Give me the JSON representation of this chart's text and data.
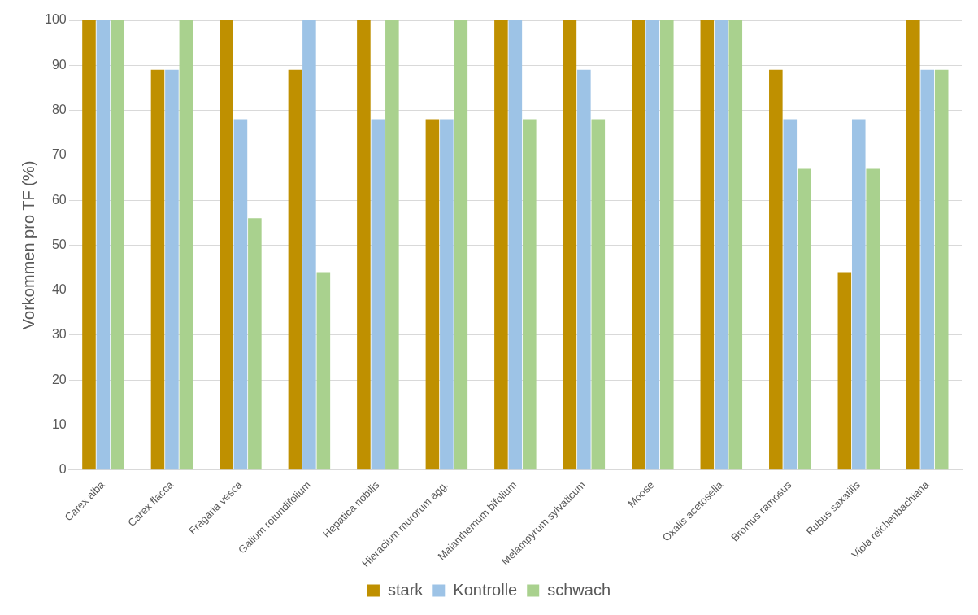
{
  "chart_data": {
    "type": "bar",
    "ylabel": "Vorkommen pro TF (%)",
    "categories": [
      "Carex alba",
      "Carex flacca",
      "Fragaria vesca",
      "Galium rotundifolium",
      "Hepatica nobilis",
      "Hieracium murorum agg.",
      "Maianthemum bifolium",
      "Melampyrum sylvaticum",
      "Moose",
      "Oxalis acetosella",
      "Bromus ramosus",
      "Rubus saxatilis",
      "Viola reichenbachiana"
    ],
    "series": [
      {
        "name": "stark",
        "color": "#bf9000",
        "values": [
          100,
          89,
          100,
          89,
          100,
          78,
          100,
          100,
          100,
          100,
          89,
          44,
          100
        ]
      },
      {
        "name": "Kontrolle",
        "color": "#9dc3e6",
        "values": [
          100,
          89,
          78,
          100,
          78,
          78,
          100,
          89,
          100,
          100,
          78,
          78,
          89
        ]
      },
      {
        "name": "schwach",
        "color": "#a9d18e",
        "values": [
          100,
          100,
          56,
          44,
          100,
          100,
          78,
          78,
          100,
          100,
          67,
          67,
          89
        ]
      }
    ],
    "ylim": [
      0,
      100
    ],
    "yticks": [
      0,
      10,
      20,
      30,
      40,
      50,
      60,
      70,
      80,
      90,
      100
    ],
    "grid": "y",
    "legend": "bottom"
  }
}
